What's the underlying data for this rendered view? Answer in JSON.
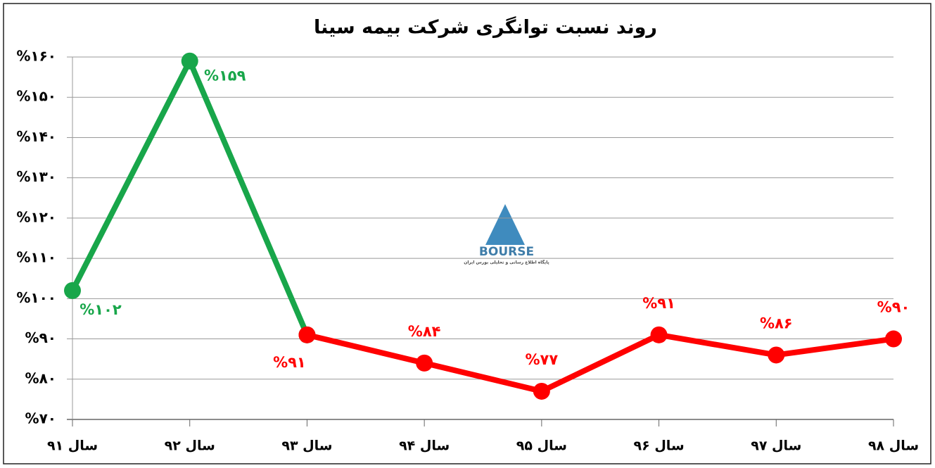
{
  "chart_data": {
    "type": "line",
    "title": "روند نسبت توانگری شرکت بیمه سینا",
    "categories": [
      "سال ۹۱",
      "سال ۹۲",
      "سال ۹۳",
      "سال ۹۴",
      "سال ۹۵",
      "سال ۹۶",
      "سال ۹۷",
      "سال ۹۸"
    ],
    "series": [
      {
        "color": "#18a64a",
        "values": [
          102,
          159,
          91,
          null,
          null,
          null,
          null,
          null
        ],
        "value_labels": [
          "%۱۰۲",
          "%۱۵۹",
          null,
          null,
          null,
          null,
          null,
          null
        ]
      },
      {
        "color": "#ff0000",
        "values": [
          null,
          null,
          91,
          84,
          77,
          91,
          86,
          90
        ],
        "value_labels": [
          null,
          null,
          "%۹۱",
          "%۸۴",
          "%۷۷",
          "%۹۱",
          "%۸۶",
          "%۹۰"
        ]
      }
    ],
    "ylim": [
      70,
      160
    ],
    "yticks": [
      {
        "value": 70,
        "label": "%۷۰"
      },
      {
        "value": 80,
        "label": "%۸۰"
      },
      {
        "value": 90,
        "label": "%۹۰"
      },
      {
        "value": 100,
        "label": "%۱۰۰"
      },
      {
        "value": 110,
        "label": "%۱۱۰"
      },
      {
        "value": 120,
        "label": "%۱۲۰"
      },
      {
        "value": 130,
        "label": "%۱۳۰"
      },
      {
        "value": 140,
        "label": "%۱۴۰"
      },
      {
        "value": 150,
        "label": "%۱۵۰"
      },
      {
        "value": 160,
        "label": "%۱۶۰"
      }
    ],
    "grid": true,
    "watermark": {
      "text": "BOURSE",
      "tagline": "پایگاه اطلاع رسانی و تحلیلی بورس ایران"
    }
  }
}
